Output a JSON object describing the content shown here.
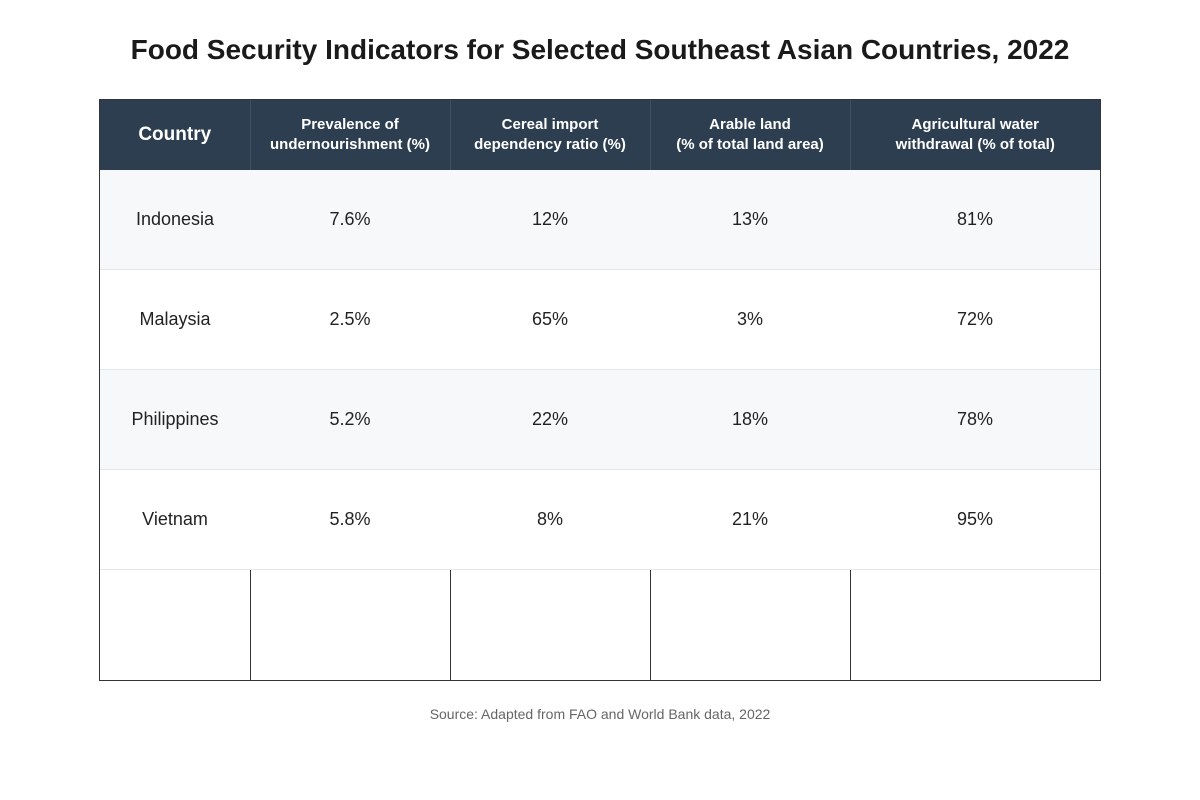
{
  "title": "Food Security Indicators for Selected Southeast Asian Countries, 2022",
  "table": {
    "headers": [
      {
        "line1": "Country",
        "line2": ""
      },
      {
        "line1": "Prevalence of",
        "line2": "undernourishment (%)"
      },
      {
        "line1": "Cereal import",
        "line2": "dependency ratio (%)"
      },
      {
        "line1": "Arable land",
        "line2": "(% of total land area)"
      },
      {
        "line1": "Agricultural water",
        "line2": "withdrawal (% of total)"
      }
    ],
    "rows": [
      [
        "Indonesia",
        "7.6%",
        "12%",
        "13%",
        "81%"
      ],
      [
        "Malaysia",
        "2.5%",
        "65%",
        "3%",
        "72%"
      ],
      [
        "Philippines",
        "5.2%",
        "22%",
        "18%",
        "78%"
      ],
      [
        "Vietnam",
        "5.8%",
        "8%",
        "21%",
        "95%"
      ]
    ]
  },
  "source": "Source: Adapted from FAO and World Bank data, 2022",
  "colors": {
    "header_bg": "#2d3e50",
    "header_text": "#ffffff",
    "row_alt_bg": "#f6f8fa",
    "border": "#333333"
  }
}
